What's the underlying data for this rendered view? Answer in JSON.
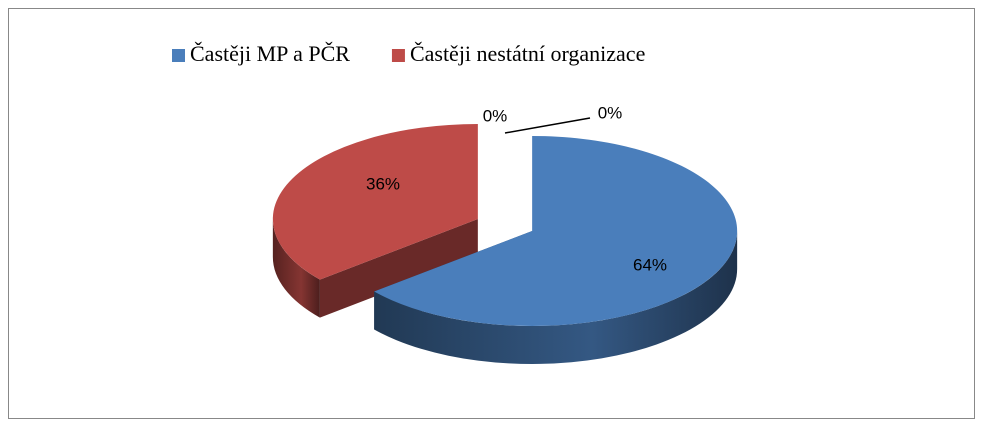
{
  "chart_data": {
    "type": "pie3d",
    "categories": [
      "Častěji MP a PČR",
      "Častěji nestátní organizace",
      null,
      null
    ],
    "values": [
      64,
      36,
      0,
      0
    ],
    "value_labels": [
      "64%",
      "36%",
      "0%",
      "0%"
    ],
    "colors": [
      "#4a7ebb",
      "#be4b48",
      "#9bbb59",
      "#8064a2"
    ],
    "legend": "top"
  }
}
